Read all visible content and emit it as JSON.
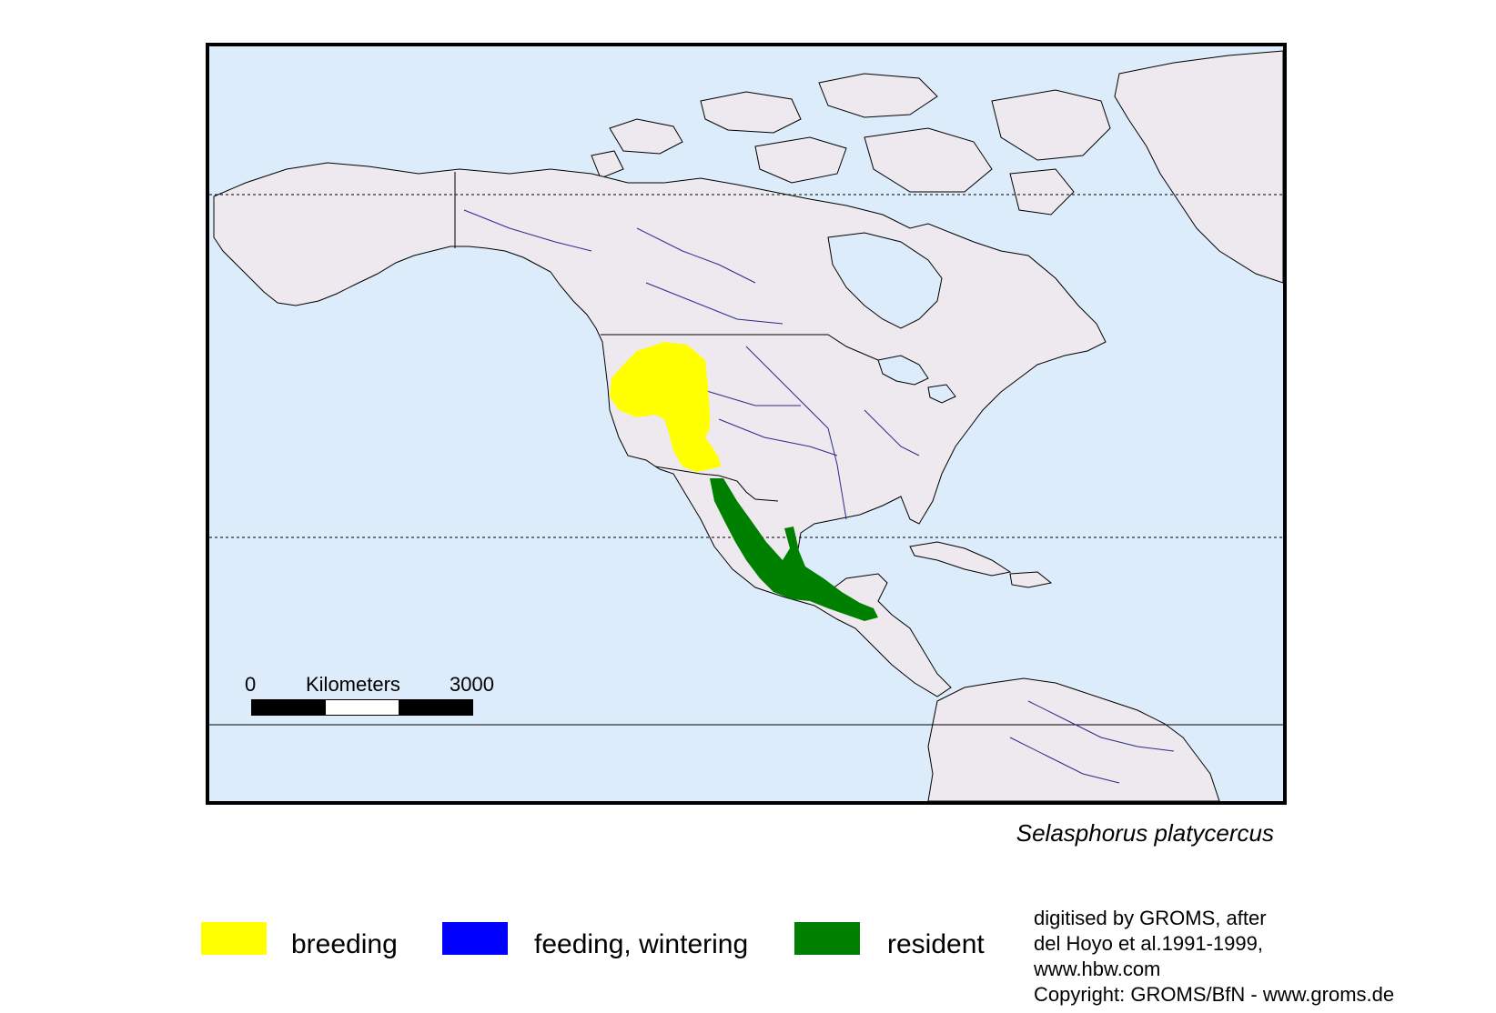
{
  "map": {
    "ocean_color": "#dcecfb",
    "land_color": "#ede9ee",
    "coast_color": "#000000",
    "river_color": "#2a2a8c"
  },
  "scale": {
    "zero_label": "0",
    "unit_label": "Kilometers",
    "max_label": "3000",
    "segment_colors": [
      "#000000",
      "#ffffff",
      "#000000"
    ]
  },
  "species_name": "Selasphorus platycercus",
  "legend": [
    {
      "label": "breeding",
      "color": "#ffff00"
    },
    {
      "label": "feeding, wintering",
      "color": "#0000ff"
    },
    {
      "label": "resident",
      "color": "#008000"
    }
  ],
  "credits": [
    "digitised by GROMS, after",
    "del Hoyo et al.1991-1999,",
    "www.hbw.com",
    "Copyright: GROMS/BfN - www.groms.de"
  ]
}
